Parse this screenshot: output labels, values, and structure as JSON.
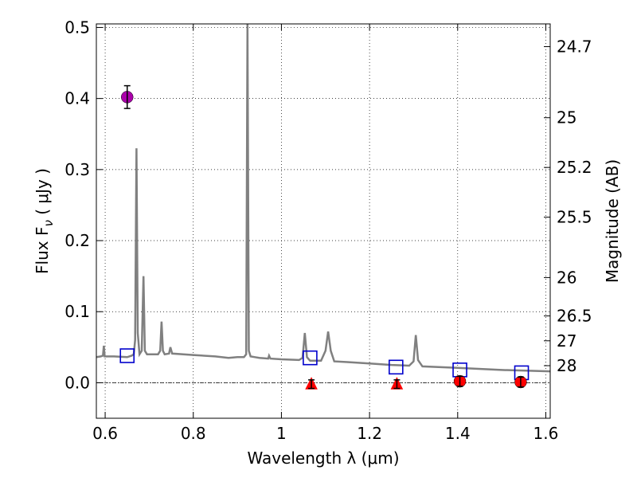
{
  "chart_data": {
    "type": "scatter",
    "xlabel": "Wavelength  λ (μm)",
    "ylabel": "Flux  F",
    "ylabel_sub": "ν",
    "ylabel_unit": " ( μJy )",
    "y2label": "Magnitude (AB)",
    "xlim": [
      0.58,
      1.61
    ],
    "ylim": [
      -0.05,
      0.505
    ],
    "x_ticks": [
      0.6,
      0.8,
      1.0,
      1.2,
      1.4,
      1.6
    ],
    "x_tick_labels": [
      "0.6",
      "0.8",
      "1",
      "1.2",
      "1.4",
      "1.6"
    ],
    "y_ticks": [
      0.0,
      0.1,
      0.2,
      0.3,
      0.4,
      0.5
    ],
    "y_tick_labels": [
      "0.0",
      "0.1",
      "0.2",
      "0.3",
      "0.4",
      "0.5"
    ],
    "y2_ticks": [
      {
        "flux": 0.473,
        "label": "24.7"
      },
      {
        "flux": 0.373,
        "label": "25"
      },
      {
        "flux": 0.303,
        "label": "25.2"
      },
      {
        "flux": 0.233,
        "label": "25.5"
      },
      {
        "flux": 0.148,
        "label": "26"
      },
      {
        "flux": 0.094,
        "label": "26.5"
      },
      {
        "flux": 0.059,
        "label": "27"
      },
      {
        "flux": 0.024,
        "label": "28"
      }
    ],
    "grid": true,
    "grid_style": "dotted",
    "colors": {
      "model": "#808080",
      "model_phot": "#0000cc",
      "detection": "#aa00aa",
      "measured": "#ff0000",
      "zero_line": "#000000"
    },
    "series": [
      {
        "kind": "line",
        "points": [
          [
            0.58,
            0.036
          ],
          [
            0.59,
            0.037
          ],
          [
            0.595,
            0.038
          ],
          [
            0.597,
            0.052
          ],
          [
            0.599,
            0.037
          ],
          [
            0.62,
            0.037
          ],
          [
            0.65,
            0.036
          ],
          [
            0.66,
            0.038
          ],
          [
            0.665,
            0.04
          ],
          [
            0.668,
            0.06
          ],
          [
            0.671,
            0.33
          ],
          [
            0.674,
            0.07
          ],
          [
            0.678,
            0.04
          ],
          [
            0.683,
            0.045
          ],
          [
            0.687,
            0.15
          ],
          [
            0.69,
            0.045
          ],
          [
            0.695,
            0.04
          ],
          [
            0.72,
            0.04
          ],
          [
            0.725,
            0.045
          ],
          [
            0.728,
            0.086
          ],
          [
            0.731,
            0.045
          ],
          [
            0.735,
            0.04
          ],
          [
            0.745,
            0.041
          ],
          [
            0.748,
            0.05
          ],
          [
            0.752,
            0.041
          ],
          [
            0.8,
            0.039
          ],
          [
            0.85,
            0.037
          ],
          [
            0.88,
            0.035
          ],
          [
            0.9,
            0.036
          ],
          [
            0.915,
            0.036
          ],
          [
            0.92,
            0.04
          ],
          [
            0.923,
            0.505
          ],
          [
            0.926,
            0.045
          ],
          [
            0.93,
            0.037
          ],
          [
            0.94,
            0.036
          ],
          [
            0.95,
            0.035
          ],
          [
            0.97,
            0.034
          ],
          [
            0.972,
            0.038
          ],
          [
            0.975,
            0.034
          ],
          [
            1.0,
            0.033
          ],
          [
            1.04,
            0.032
          ],
          [
            1.048,
            0.035
          ],
          [
            1.053,
            0.07
          ],
          [
            1.058,
            0.036
          ],
          [
            1.065,
            0.031
          ],
          [
            1.09,
            0.031
          ],
          [
            1.1,
            0.045
          ],
          [
            1.106,
            0.072
          ],
          [
            1.112,
            0.045
          ],
          [
            1.12,
            0.03
          ],
          [
            1.15,
            0.029
          ],
          [
            1.2,
            0.027
          ],
          [
            1.25,
            0.025
          ],
          [
            1.29,
            0.024
          ],
          [
            1.3,
            0.03
          ],
          [
            1.305,
            0.067
          ],
          [
            1.31,
            0.032
          ],
          [
            1.32,
            0.023
          ],
          [
            1.4,
            0.021
          ],
          [
            1.5,
            0.018
          ],
          [
            1.61,
            0.016
          ]
        ]
      },
      {
        "kind": "square",
        "points": [
          [
            0.65,
            0.038
          ],
          [
            1.065,
            0.035
          ],
          [
            1.26,
            0.022
          ],
          [
            1.405,
            0.018
          ],
          [
            1.545,
            0.014
          ]
        ]
      },
      {
        "kind": "circle",
        "points": [
          [
            0.65,
            0.402
          ]
        ],
        "err": [
          0.016
        ]
      },
      {
        "kind": "triangle",
        "points": [
          [
            1.068,
            -0.002
          ],
          [
            1.262,
            -0.002
          ]
        ],
        "err": [
          0.006,
          0.006
        ]
      },
      {
        "kind": "circle",
        "points": [
          [
            1.405,
            0.002
          ],
          [
            1.543,
            0.001
          ]
        ],
        "err": [
          0.007,
          0.007
        ]
      }
    ]
  }
}
